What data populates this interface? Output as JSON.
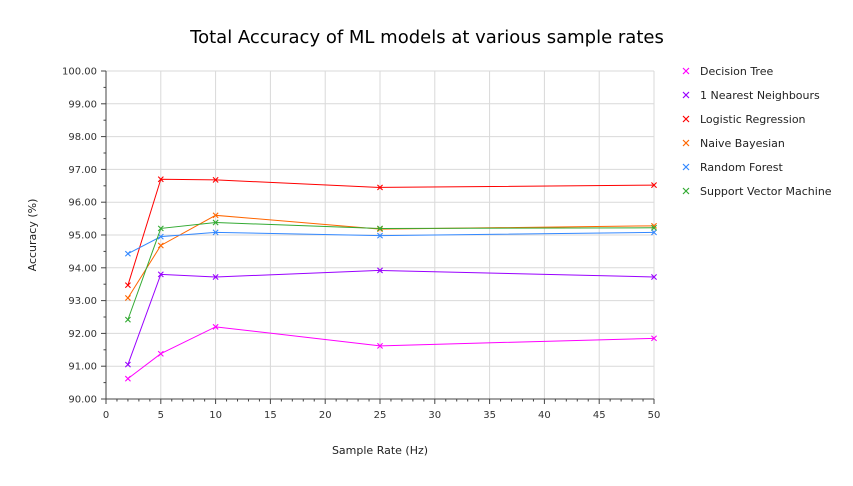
{
  "chart_data": {
    "type": "line",
    "title": "Total Accuracy of ML models at various sample rates",
    "xlabel": "Sample Rate (Hz)",
    "ylabel": "Accuracy (%)",
    "xlim": [
      0,
      50
    ],
    "ylim": [
      90,
      100
    ],
    "xticks": [
      0,
      5,
      10,
      15,
      20,
      25,
      30,
      35,
      40,
      45,
      50
    ],
    "yticks": [
      90,
      91,
      92,
      93,
      94,
      95,
      96,
      97,
      98,
      99,
      100
    ],
    "ytick_labels": [
      "90.00",
      "91.00",
      "92.00",
      "93.00",
      "94.00",
      "95.00",
      "96.00",
      "97.00",
      "98.00",
      "99.00",
      "100.00"
    ],
    "xtick_labels": [
      "0",
      "5",
      "10",
      "15",
      "20",
      "25",
      "30",
      "35",
      "40",
      "45",
      "50"
    ],
    "grid": true,
    "legend_position": "right",
    "x": [
      2,
      5,
      10,
      25,
      50
    ],
    "series": [
      {
        "name": "Decision Tree",
        "color": "#ff00ff",
        "values": [
          90.62,
          91.38,
          92.2,
          91.62,
          91.85
        ]
      },
      {
        "name": "1 Nearest Neighbours",
        "color": "#9900ff",
        "values": [
          91.05,
          93.8,
          93.72,
          93.92,
          93.72
        ]
      },
      {
        "name": "Logistic Regression",
        "color": "#ff0000",
        "values": [
          93.47,
          96.7,
          96.68,
          96.45,
          96.52
        ]
      },
      {
        "name": "Naive Bayesian",
        "color": "#ff6600",
        "values": [
          93.08,
          94.68,
          95.6,
          95.18,
          95.28
        ]
      },
      {
        "name": "Random Forest",
        "color": "#3388ff",
        "values": [
          94.43,
          94.95,
          95.08,
          94.98,
          95.08
        ]
      },
      {
        "name": "Support Vector Machine",
        "color": "#33aa33",
        "values": [
          92.42,
          95.2,
          95.38,
          95.2,
          95.22
        ]
      }
    ]
  }
}
